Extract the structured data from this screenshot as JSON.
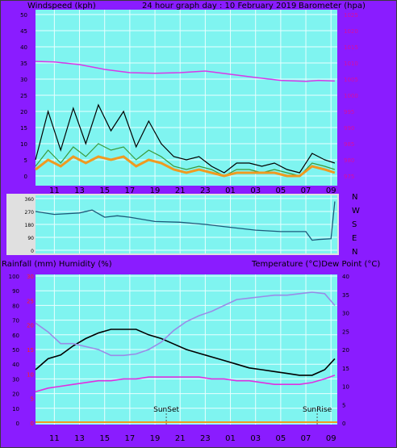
{
  "header": {
    "left": "Windspeed (kph)",
    "center": "24 hour graph day : 10 February 2019",
    "right": "Barometer (hpa)"
  },
  "middle_labels": {
    "left": "Rainfall (mm)  Humidity (%)",
    "right": "Temperature (°C)Dew Point (°C)"
  },
  "colors": {
    "background": "#8a1cff",
    "plot_bg": "#7ff4f0",
    "grid": "#e8ffff",
    "pressure": "#d838e8",
    "wind_gust": "#000000",
    "wind_avg": "#3a9a3a",
    "wind_extra": "#f09a20",
    "direction": "#1d5a7a",
    "temperature": "#000000",
    "humidity": "#9a8ce8",
    "dewpoint": "#e030e0",
    "left_axis_text": "#000000",
    "pressure_axis_text": "#d60fa0",
    "rain_axis_text": "#ff2020"
  },
  "x_ticks": [
    "11",
    "13",
    "15",
    "17",
    "19",
    "21",
    "23",
    "01",
    "03",
    "05",
    "07",
    "09"
  ],
  "chart_data": [
    {
      "type": "line",
      "name": "wind-pressure",
      "title": "24 hour graph day : 10 February 2019",
      "ylabel_left": "Windspeed (kph)",
      "ylabel_right": "Barometer (hpa)",
      "y_left_ticks": [
        "0",
        "5",
        "10",
        "15",
        "20",
        "25",
        "30",
        "35",
        "40",
        "45",
        "50"
      ],
      "y_right_ticks": [
        "975",
        "980",
        "985",
        "990",
        "995",
        "1000",
        "1005",
        "1010",
        "1015",
        "1020",
        "1025"
      ],
      "ylim_left": [
        0,
        50
      ],
      "ylim_right": [
        974,
        1026
      ],
      "x_hours_range": [
        9.5,
        33.5
      ],
      "series": [
        {
          "name": "pressure",
          "axis": "right",
          "x": [
            9.5,
            11,
            13,
            15,
            17,
            19,
            21,
            23,
            25,
            27,
            29,
            31,
            32,
            33.3
          ],
          "y": [
            1010.5,
            1010.3,
            1009.5,
            1008,
            1007,
            1006.8,
            1007,
            1007.5,
            1006.5,
            1005.5,
            1004.6,
            1004.3,
            1004.6,
            1004.4
          ]
        },
        {
          "name": "gust",
          "axis": "left",
          "x": [
            9.5,
            10.5,
            11.5,
            12.5,
            13.5,
            14.5,
            15.5,
            16.5,
            17.5,
            18.5,
            19.5,
            20.5,
            21.5,
            22.5,
            23.5,
            24.5,
            25.5,
            26.5,
            27.5,
            28.5,
            29.5,
            30.5,
            31.5,
            32.5,
            33.3
          ],
          "y": [
            5,
            20,
            8,
            21,
            10,
            22,
            14,
            20,
            9,
            17,
            10,
            6,
            5,
            6,
            3,
            1,
            4,
            4,
            3,
            4,
            2,
            1,
            7,
            5,
            4
          ]
        },
        {
          "name": "average",
          "axis": "left",
          "x": [
            9.5,
            10.5,
            11.5,
            12.5,
            13.5,
            14.5,
            15.5,
            16.5,
            17.5,
            18.5,
            19.5,
            20.5,
            21.5,
            22.5,
            23.5,
            24.5,
            25.5,
            26.5,
            27.5,
            28.5,
            29.5,
            30.5,
            31.5,
            32.5,
            33.3
          ],
          "y": [
            3,
            8,
            4,
            9,
            6,
            10,
            8,
            9,
            5,
            8,
            6,
            3,
            2,
            3,
            2,
            0,
            2,
            2,
            1,
            2,
            1,
            0,
            4,
            3,
            2
          ]
        },
        {
          "name": "average-orange",
          "axis": "left",
          "x": [
            9.5,
            10.5,
            11.5,
            12.5,
            13.5,
            14.5,
            15.5,
            16.5,
            17.5,
            18.5,
            19.5,
            20.5,
            21.5,
            22.5,
            23.5,
            24.5,
            25.5,
            26.5,
            27.5,
            28.5,
            29.5,
            30.5,
            31.5,
            32.5,
            33.3
          ],
          "y": [
            2,
            5,
            3,
            6,
            4,
            6,
            5,
            6,
            3,
            5,
            4,
            2,
            1,
            2,
            1,
            0,
            1,
            1,
            1,
            1,
            0,
            0,
            3,
            2,
            1
          ]
        }
      ]
    },
    {
      "type": "line",
      "name": "wind-direction",
      "y_right_ticks": [
        "N",
        "W",
        "S",
        "E",
        "N"
      ],
      "y_left_ticks": [
        "360",
        "270",
        "180",
        "90",
        "0"
      ],
      "ylim": [
        0,
        360
      ],
      "series": [
        {
          "name": "direction",
          "x": [
            9.5,
            11,
            13,
            14,
            15,
            16,
            17,
            19,
            21,
            23,
            25,
            27,
            29,
            31,
            31.5,
            32,
            33,
            33.3
          ],
          "y": [
            270,
            250,
            260,
            280,
            230,
            240,
            230,
            200,
            195,
            180,
            160,
            140,
            130,
            130,
            70,
            75,
            80,
            340
          ]
        }
      ]
    },
    {
      "type": "line",
      "name": "temperature-humidity",
      "ylabel_left": "Rainfall (mm)  Humidity (%)",
      "ylabel_right": "Temperature (°C)Dew Point (°C)",
      "y_left_ticks": [
        "0",
        "10",
        "20",
        "30",
        "40",
        "50",
        "60",
        "70",
        "80",
        "90",
        "100"
      ],
      "y_rain_ticks": [
        "0",
        "5",
        "10",
        "15",
        "20",
        "25",
        "30"
      ],
      "y_right_ticks": [
        "0",
        "5",
        "10",
        "15",
        "20",
        "25",
        "30",
        "35",
        "40"
      ],
      "ylim_left": [
        0,
        100
      ],
      "ylim_right": [
        0,
        40
      ],
      "annotations": [
        {
          "label": "SunSet",
          "x": 19.9
        },
        {
          "label": "SunRise",
          "x": 31.9
        }
      ],
      "series": [
        {
          "name": "temperature",
          "axis": "right",
          "x": [
            9.5,
            10.5,
            11.5,
            12.5,
            13.5,
            14.5,
            15.5,
            16.5,
            17.5,
            18.5,
            19.5,
            20.5,
            21.5,
            22.5,
            23.5,
            24.5,
            25.5,
            26.5,
            27.5,
            28.5,
            29.5,
            30.5,
            31.5,
            32.5,
            33.3
          ],
          "y": [
            14.5,
            17.5,
            18.5,
            21,
            23,
            24.5,
            25.5,
            25.5,
            25.5,
            24,
            23,
            21.5,
            20,
            19,
            18,
            17,
            16,
            15,
            14.5,
            14,
            13.5,
            13,
            13,
            14.5,
            17.5
          ]
        },
        {
          "name": "humidity",
          "axis": "left",
          "x": [
            9.5,
            10.5,
            11.5,
            12.5,
            13.5,
            14.5,
            15.5,
            16.5,
            17.5,
            18.5,
            19.5,
            20.5,
            21.5,
            22.5,
            23.5,
            24.5,
            25.5,
            26.5,
            27.5,
            28.5,
            29.5,
            30.5,
            31.5,
            32.5,
            33.3
          ],
          "y": [
            68,
            62,
            54,
            54,
            52,
            50,
            46,
            46,
            47,
            50,
            55,
            63,
            69,
            73,
            76,
            80,
            84,
            85,
            86,
            87,
            87,
            88,
            89,
            88,
            80
          ]
        },
        {
          "name": "dewpoint",
          "axis": "right",
          "x": [
            9.5,
            10.5,
            11.5,
            12.5,
            13.5,
            14.5,
            15.5,
            16.5,
            17.5,
            18.5,
            19.5,
            20.5,
            21.5,
            22.5,
            23.5,
            24.5,
            25.5,
            26.5,
            27.5,
            28.5,
            29.5,
            30.5,
            31.5,
            32.5,
            33.3
          ],
          "y": [
            8.5,
            9.5,
            10,
            10.5,
            11,
            11.5,
            11.5,
            12,
            12,
            12.5,
            12.5,
            12.5,
            12.5,
            12.5,
            12,
            12,
            11.5,
            11.5,
            11,
            10.5,
            10.5,
            10.5,
            11,
            12,
            13
          ]
        }
      ]
    }
  ]
}
